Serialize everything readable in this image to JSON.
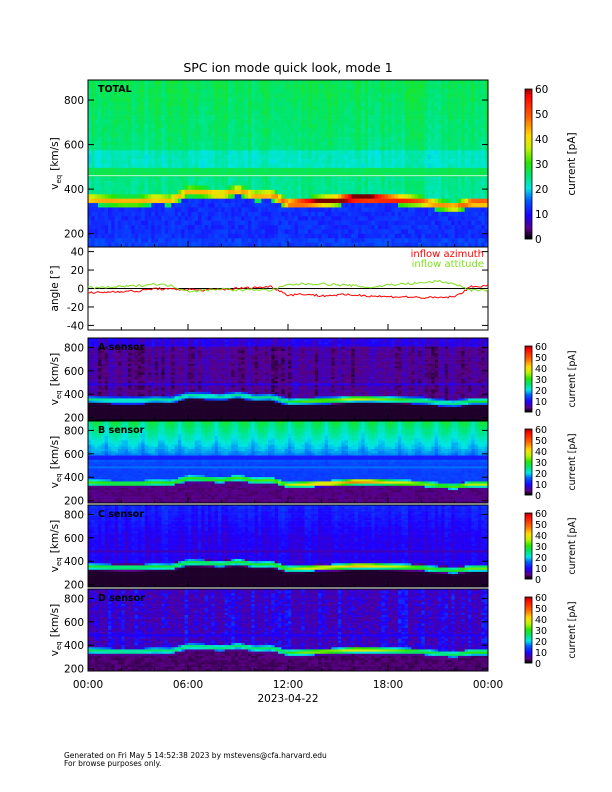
{
  "title": "SPC ion mode quick look, mode 1",
  "footer": {
    "line1": "Generated on Fri May  5 14:52:38 2023 by mstevens@cfa.harvard.edu",
    "line2": "For browse purposes only."
  },
  "chart_data": [
    {
      "type": "heatmap",
      "panel_label": "TOTAL",
      "ylabel": "v_eq [km/s]",
      "ylabel_main": "v",
      "ylabel_sub": "eq",
      "ylabel_unit": "[km/s]",
      "yticks": [
        "200",
        "400",
        "600",
        "800"
      ],
      "ylim": [
        140,
        890
      ],
      "colorbar": {
        "label": "current [pA]",
        "ticks": [
          "0",
          "10",
          "20",
          "30",
          "40",
          "50",
          "60"
        ],
        "range": [
          0,
          60
        ],
        "colormap": "rainbow"
      },
      "x_hours": [
        0,
        1,
        2,
        3,
        4,
        5,
        6,
        7,
        8,
        9,
        10,
        11,
        12,
        13,
        14,
        15,
        16,
        17,
        18,
        19,
        20,
        21,
        22,
        23,
        24
      ],
      "peak_velocity_kms": [
        355,
        350,
        345,
        345,
        355,
        350,
        390,
        385,
        375,
        395,
        370,
        375,
        335,
        340,
        345,
        350,
        360,
        360,
        355,
        350,
        345,
        330,
        320,
        340,
        340
      ],
      "peak_current_pA": [
        25,
        25,
        24,
        24,
        25,
        24,
        24,
        24,
        24,
        25,
        25,
        26,
        30,
        38,
        42,
        40,
        48,
        45,
        38,
        35,
        30,
        26,
        26,
        32,
        32
      ]
    },
    {
      "type": "line",
      "ylabel": "angle [°]",
      "yticks": [
        "-40",
        "-20",
        "0",
        "20",
        "40"
      ],
      "ylim": [
        -45,
        45
      ],
      "x_hours": [
        0,
        1,
        2,
        3,
        4,
        5,
        6,
        7,
        8,
        9,
        10,
        11,
        12,
        13,
        14,
        15,
        16,
        17,
        18,
        19,
        20,
        21,
        22,
        23,
        24
      ],
      "series": [
        {
          "name": "inflow azimuth",
          "color": "#ff0000",
          "values": [
            -5,
            -4,
            -3,
            -3,
            0,
            -1,
            -1,
            -2,
            -1,
            0,
            1,
            2,
            -7,
            -6,
            -8,
            -7,
            -7,
            -8,
            -9,
            -9,
            -10,
            -10,
            -9,
            2,
            3
          ]
        },
        {
          "name": "inflow attitude",
          "color": "#80e020",
          "values": [
            1,
            1,
            2,
            3,
            5,
            3,
            -3,
            -2,
            0,
            -2,
            -1,
            -2,
            4,
            5,
            5,
            4,
            3,
            1,
            4,
            5,
            6,
            8,
            5,
            -2,
            -2
          ]
        }
      ]
    },
    {
      "type": "heatmap",
      "panel_label": "A sensor",
      "ylim": [
        180,
        880
      ],
      "yticks": [
        "200",
        "400",
        "600",
        "800"
      ],
      "colorbar": {
        "label": "current [pA]",
        "ticks": [
          "0",
          "10",
          "20",
          "30",
          "40",
          "50",
          "60"
        ],
        "range": [
          0,
          60
        ]
      }
    },
    {
      "type": "heatmap",
      "panel_label": "B sensor",
      "ylim": [
        180,
        880
      ],
      "yticks": [
        "200",
        "400",
        "600",
        "800"
      ],
      "colorbar": {
        "label": "current [pA]",
        "ticks": [
          "0",
          "10",
          "20",
          "30",
          "40",
          "50",
          "60"
        ],
        "range": [
          0,
          60
        ]
      }
    },
    {
      "type": "heatmap",
      "panel_label": "C sensor",
      "ylim": [
        180,
        880
      ],
      "yticks": [
        "200",
        "400",
        "600",
        "800"
      ],
      "colorbar": {
        "label": "current [pA]",
        "ticks": [
          "0",
          "10",
          "20",
          "30",
          "40",
          "50",
          "60"
        ],
        "range": [
          0,
          60
        ]
      }
    },
    {
      "type": "heatmap",
      "panel_label": "D sensor",
      "ylim": [
        180,
        880
      ],
      "yticks": [
        "200",
        "400",
        "600",
        "800"
      ],
      "colorbar": {
        "label": "current [pA]",
        "ticks": [
          "0",
          "10",
          "20",
          "30",
          "40",
          "50",
          "60"
        ],
        "range": [
          0,
          60
        ]
      }
    }
  ],
  "xaxis": {
    "ticks": [
      "00:00",
      "06:00",
      "12:00",
      "18:00",
      "00:00"
    ],
    "tick_hours": [
      0,
      6,
      12,
      18,
      24
    ],
    "date": "2023-04-22",
    "range_hours": [
      0,
      24
    ]
  }
}
